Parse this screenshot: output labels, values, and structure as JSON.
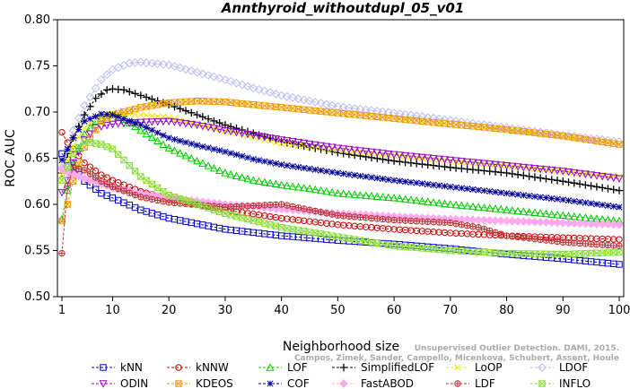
{
  "chart_data": {
    "type": "line",
    "title": "Annthyroid_withoutdupl_05_v01",
    "xlabel": "Neighborhood size",
    "ylabel": "ROC AUC",
    "xlim": [
      1,
      100
    ],
    "ylim": [
      0.5,
      0.8
    ],
    "x_ticks": [
      "1",
      "10",
      "20",
      "30",
      "40",
      "50",
      "60",
      "70",
      "80",
      "90",
      "100"
    ],
    "y_ticks": [
      "0.50",
      "0.55",
      "0.60",
      "0.65",
      "0.70",
      "0.75",
      "0.80"
    ],
    "grid": false,
    "legend_position": "bottom",
    "watermark": [
      "Unsupervised Outlier Detection. DAMI, 2015.",
      "Campos, Zimek, Sander, Campello, Micenkova, Schubert, Assent, Houle"
    ],
    "series": [
      {
        "name": "kNN",
        "color": "#0000cc",
        "marker": "square",
        "points": [
          [
            1,
            0.655
          ],
          [
            2,
            0.648
          ],
          [
            3,
            0.64
          ],
          [
            5,
            0.625
          ],
          [
            8,
            0.612
          ],
          [
            10,
            0.607
          ],
          [
            15,
            0.594
          ],
          [
            20,
            0.585
          ],
          [
            30,
            0.573
          ],
          [
            40,
            0.566
          ],
          [
            50,
            0.561
          ],
          [
            60,
            0.557
          ],
          [
            70,
            0.552
          ],
          [
            80,
            0.546
          ],
          [
            90,
            0.541
          ],
          [
            100,
            0.535
          ]
        ]
      },
      {
        "name": "kNNW",
        "color": "#cc0000",
        "marker": "circle",
        "points": [
          [
            1,
            0.678
          ],
          [
            2,
            0.667
          ],
          [
            3,
            0.66
          ],
          [
            5,
            0.645
          ],
          [
            8,
            0.632
          ],
          [
            10,
            0.626
          ],
          [
            15,
            0.614
          ],
          [
            20,
            0.606
          ],
          [
            30,
            0.594
          ],
          [
            40,
            0.585
          ],
          [
            50,
            0.578
          ],
          [
            60,
            0.573
          ],
          [
            70,
            0.569
          ],
          [
            80,
            0.566
          ],
          [
            90,
            0.564
          ],
          [
            100,
            0.562
          ]
        ]
      },
      {
        "name": "LOF",
        "color": "#00cc00",
        "marker": "triangle-up",
        "points": [
          [
            1,
            0.584
          ],
          [
            2,
            0.615
          ],
          [
            3,
            0.645
          ],
          [
            5,
            0.676
          ],
          [
            7,
            0.69
          ],
          [
            9,
            0.696
          ],
          [
            10,
            0.697
          ],
          [
            12,
            0.692
          ],
          [
            15,
            0.68
          ],
          [
            20,
            0.661
          ],
          [
            25,
            0.647
          ],
          [
            30,
            0.634
          ],
          [
            35,
            0.626
          ],
          [
            40,
            0.621
          ],
          [
            45,
            0.617
          ],
          [
            50,
            0.612
          ],
          [
            60,
            0.607
          ],
          [
            70,
            0.6
          ],
          [
            80,
            0.594
          ],
          [
            90,
            0.588
          ],
          [
            100,
            0.582
          ]
        ]
      },
      {
        "name": "SimplifiedLOF",
        "color": "#000000",
        "marker": "plus",
        "points": [
          [
            1,
            0.634
          ],
          [
            2,
            0.655
          ],
          [
            3,
            0.672
          ],
          [
            5,
            0.697
          ],
          [
            7,
            0.715
          ],
          [
            9,
            0.724
          ],
          [
            10,
            0.725
          ],
          [
            12,
            0.724
          ],
          [
            15,
            0.718
          ],
          [
            20,
            0.708
          ],
          [
            25,
            0.697
          ],
          [
            30,
            0.686
          ],
          [
            35,
            0.677
          ],
          [
            40,
            0.668
          ],
          [
            50,
            0.656
          ],
          [
            60,
            0.647
          ],
          [
            70,
            0.64
          ],
          [
            80,
            0.634
          ],
          [
            90,
            0.625
          ],
          [
            100,
            0.615
          ]
        ]
      },
      {
        "name": "LoOP",
        "color": "#eeee00",
        "marker": "x",
        "points": [
          [
            1,
            0.632
          ],
          [
            2,
            0.648
          ],
          [
            3,
            0.663
          ],
          [
            5,
            0.683
          ],
          [
            8,
            0.697
          ],
          [
            10,
            0.699
          ],
          [
            15,
            0.697
          ],
          [
            20,
            0.694
          ],
          [
            30,
            0.68
          ],
          [
            40,
            0.666
          ],
          [
            50,
            0.659
          ],
          [
            60,
            0.653
          ],
          [
            70,
            0.647
          ],
          [
            80,
            0.642
          ],
          [
            90,
            0.636
          ],
          [
            100,
            0.63
          ]
        ]
      },
      {
        "name": "LDOF",
        "color": "#bbbbee",
        "marker": "diamond",
        "points": [
          [
            1,
            0.64
          ],
          [
            2,
            0.66
          ],
          [
            3,
            0.68
          ],
          [
            5,
            0.707
          ],
          [
            8,
            0.735
          ],
          [
            10,
            0.746
          ],
          [
            13,
            0.753
          ],
          [
            15,
            0.754
          ],
          [
            20,
            0.751
          ],
          [
            25,
            0.743
          ],
          [
            30,
            0.735
          ],
          [
            35,
            0.726
          ],
          [
            40,
            0.718
          ],
          [
            45,
            0.712
          ],
          [
            50,
            0.706
          ],
          [
            60,
            0.699
          ],
          [
            70,
            0.691
          ],
          [
            80,
            0.683
          ],
          [
            90,
            0.675
          ],
          [
            100,
            0.668
          ]
        ]
      },
      {
        "name": "ODIN",
        "color": "#9900cc",
        "marker": "triangle-down",
        "points": [
          [
            1,
            0.613
          ],
          [
            2,
            0.626
          ],
          [
            3,
            0.645
          ],
          [
            5,
            0.67
          ],
          [
            7,
            0.683
          ],
          [
            10,
            0.687
          ],
          [
            15,
            0.689
          ],
          [
            20,
            0.69
          ],
          [
            25,
            0.686
          ],
          [
            30,
            0.68
          ],
          [
            40,
            0.67
          ],
          [
            50,
            0.661
          ],
          [
            60,
            0.654
          ],
          [
            70,
            0.648
          ],
          [
            80,
            0.642
          ],
          [
            90,
            0.636
          ],
          [
            100,
            0.628
          ]
        ]
      },
      {
        "name": "KDEOS",
        "color": "#ee9900",
        "marker": "square-cross",
        "points": [
          [
            1,
            0.582
          ],
          [
            2,
            0.6
          ],
          [
            3,
            0.625
          ],
          [
            5,
            0.662
          ],
          [
            8,
            0.69
          ],
          [
            10,
            0.697
          ],
          [
            15,
            0.705
          ],
          [
            20,
            0.71
          ],
          [
            25,
            0.712
          ],
          [
            30,
            0.711
          ],
          [
            40,
            0.705
          ],
          [
            50,
            0.699
          ],
          [
            60,
            0.693
          ],
          [
            70,
            0.687
          ],
          [
            80,
            0.681
          ],
          [
            90,
            0.674
          ],
          [
            100,
            0.665
          ]
        ]
      },
      {
        "name": "COF",
        "color": "#000099",
        "marker": "asterisk",
        "points": [
          [
            1,
            0.648
          ],
          [
            2,
            0.66
          ],
          [
            3,
            0.672
          ],
          [
            5,
            0.69
          ],
          [
            8,
            0.698
          ],
          [
            10,
            0.697
          ],
          [
            15,
            0.686
          ],
          [
            20,
            0.672
          ],
          [
            25,
            0.664
          ],
          [
            30,
            0.657
          ],
          [
            35,
            0.649
          ],
          [
            40,
            0.643
          ],
          [
            50,
            0.634
          ],
          [
            60,
            0.626
          ],
          [
            70,
            0.619
          ],
          [
            80,
            0.612
          ],
          [
            90,
            0.605
          ],
          [
            100,
            0.597
          ]
        ]
      },
      {
        "name": "FastABOD",
        "color": "#ffaaee",
        "marker": "diamond-filled",
        "points": [
          [
            1,
            0.638
          ],
          [
            2,
            0.635
          ],
          [
            3,
            0.633
          ],
          [
            5,
            0.628
          ],
          [
            8,
            0.622
          ],
          [
            10,
            0.618
          ],
          [
            15,
            0.612
          ],
          [
            20,
            0.607
          ],
          [
            30,
            0.6
          ],
          [
            40,
            0.595
          ],
          [
            50,
            0.59
          ],
          [
            60,
            0.587
          ],
          [
            70,
            0.584
          ],
          [
            80,
            0.582
          ],
          [
            90,
            0.58
          ],
          [
            100,
            0.578
          ]
        ]
      },
      {
        "name": "LDF",
        "color": "#bb3333",
        "marker": "circle-plus",
        "points": [
          [
            1,
            0.547
          ],
          [
            2,
            0.62
          ],
          [
            3,
            0.64
          ],
          [
            5,
            0.637
          ],
          [
            8,
            0.625
          ],
          [
            10,
            0.619
          ],
          [
            15,
            0.608
          ],
          [
            20,
            0.602
          ],
          [
            30,
            0.597
          ],
          [
            40,
            0.6
          ],
          [
            45,
            0.594
          ],
          [
            50,
            0.588
          ],
          [
            60,
            0.583
          ],
          [
            70,
            0.58
          ],
          [
            75,
            0.575
          ],
          [
            80,
            0.566
          ],
          [
            90,
            0.559
          ],
          [
            100,
            0.555
          ]
        ]
      },
      {
        "name": "INFLO",
        "color": "#88dd33",
        "marker": "hourglass",
        "points": [
          [
            1,
            0.626
          ],
          [
            2,
            0.64
          ],
          [
            3,
            0.655
          ],
          [
            5,
            0.668
          ],
          [
            8,
            0.665
          ],
          [
            10,
            0.66
          ],
          [
            15,
            0.63
          ],
          [
            20,
            0.61
          ],
          [
            25,
            0.6
          ],
          [
            30,
            0.59
          ],
          [
            40,
            0.575
          ],
          [
            50,
            0.565
          ],
          [
            60,
            0.555
          ],
          [
            70,
            0.55
          ],
          [
            80,
            0.547
          ],
          [
            90,
            0.546
          ],
          [
            100,
            0.548
          ]
        ]
      }
    ]
  }
}
